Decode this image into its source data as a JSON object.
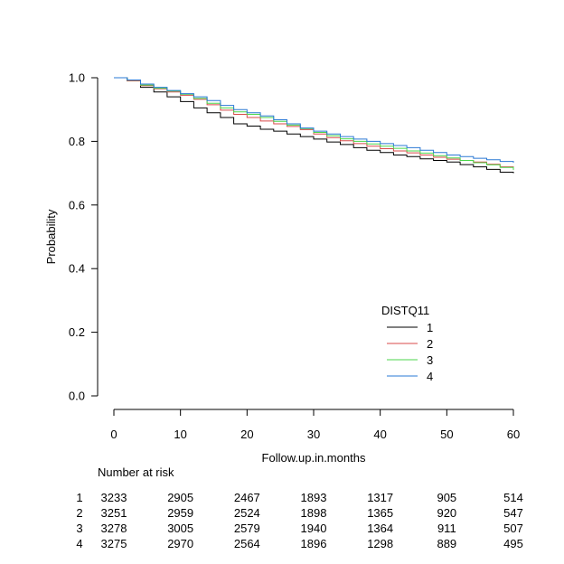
{
  "chart_data": {
    "type": "line",
    "xlabel": "Follow.up.in.months",
    "ylabel": "Probability",
    "xlim": [
      0,
      60
    ],
    "ylim": [
      0.0,
      1.0
    ],
    "x_ticks": [
      "0",
      "10",
      "20",
      "30",
      "40",
      "50",
      "60"
    ],
    "y_ticks": [
      "0.0",
      "0.2",
      "0.4",
      "0.6",
      "0.8",
      "1.0"
    ],
    "grid": false,
    "legend": {
      "title": "DISTQ11",
      "placement": "bottom-right"
    },
    "series": [
      {
        "name": "1",
        "color": "#000000",
        "x": [
          0,
          2,
          4,
          6,
          8,
          10,
          12,
          14,
          16,
          18,
          20,
          22,
          24,
          26,
          28,
          30,
          32,
          34,
          36,
          38,
          40,
          42,
          44,
          46,
          48,
          50,
          52,
          54,
          56,
          58,
          60
        ],
        "y": [
          1.0,
          0.99,
          0.97,
          0.955,
          0.94,
          0.925,
          0.905,
          0.89,
          0.875,
          0.855,
          0.848,
          0.838,
          0.832,
          0.823,
          0.815,
          0.807,
          0.798,
          0.79,
          0.78,
          0.772,
          0.765,
          0.757,
          0.752,
          0.745,
          0.74,
          0.735,
          0.727,
          0.72,
          0.712,
          0.703,
          0.7
        ]
      },
      {
        "name": "2",
        "color": "#d84a4a",
        "x": [
          0,
          2,
          4,
          6,
          8,
          10,
          12,
          14,
          16,
          18,
          20,
          22,
          24,
          26,
          28,
          30,
          32,
          34,
          36,
          38,
          40,
          42,
          44,
          46,
          48,
          50,
          52,
          54,
          56,
          58,
          60
        ],
        "y": [
          1.0,
          0.99,
          0.975,
          0.965,
          0.955,
          0.945,
          0.932,
          0.915,
          0.898,
          0.885,
          0.875,
          0.864,
          0.855,
          0.847,
          0.837,
          0.823,
          0.812,
          0.802,
          0.793,
          0.785,
          0.777,
          0.77,
          0.764,
          0.757,
          0.75,
          0.744,
          0.74,
          0.735,
          0.728,
          0.72,
          0.715
        ]
      },
      {
        "name": "3",
        "color": "#4bd64b",
        "x": [
          0,
          2,
          4,
          6,
          8,
          10,
          12,
          14,
          16,
          18,
          20,
          22,
          24,
          26,
          28,
          30,
          32,
          34,
          36,
          38,
          40,
          42,
          44,
          46,
          48,
          50,
          52,
          54,
          56,
          58,
          60
        ],
        "y": [
          1.0,
          0.992,
          0.977,
          0.967,
          0.958,
          0.948,
          0.935,
          0.92,
          0.905,
          0.893,
          0.885,
          0.875,
          0.863,
          0.851,
          0.84,
          0.828,
          0.818,
          0.808,
          0.8,
          0.792,
          0.785,
          0.778,
          0.77,
          0.763,
          0.755,
          0.748,
          0.74,
          0.733,
          0.726,
          0.718,
          0.71
        ]
      },
      {
        "name": "4",
        "color": "#2a78d4",
        "x": [
          0,
          2,
          4,
          6,
          8,
          10,
          12,
          14,
          16,
          18,
          20,
          22,
          24,
          26,
          28,
          30,
          32,
          34,
          36,
          38,
          40,
          42,
          44,
          46,
          48,
          50,
          52,
          54,
          56,
          58,
          60
        ],
        "y": [
          1.0,
          0.993,
          0.98,
          0.97,
          0.96,
          0.95,
          0.94,
          0.928,
          0.913,
          0.9,
          0.89,
          0.88,
          0.868,
          0.855,
          0.842,
          0.832,
          0.823,
          0.815,
          0.807,
          0.8,
          0.793,
          0.787,
          0.78,
          0.772,
          0.765,
          0.757,
          0.752,
          0.747,
          0.742,
          0.737,
          0.733
        ]
      }
    ],
    "number_at_risk": {
      "title": "Number at risk",
      "times": [
        0,
        10,
        20,
        30,
        40,
        50,
        60
      ],
      "rows": [
        {
          "label": "1",
          "values": [
            "3233",
            "2905",
            "2467",
            "1893",
            "1317",
            "905",
            "514"
          ]
        },
        {
          "label": "2",
          "values": [
            "3251",
            "2959",
            "2524",
            "1898",
            "1365",
            "920",
            "547"
          ]
        },
        {
          "label": "3",
          "values": [
            "3278",
            "3005",
            "2579",
            "1940",
            "1364",
            "911",
            "507"
          ]
        },
        {
          "label": "4",
          "values": [
            "3275",
            "2970",
            "2564",
            "1896",
            "1298",
            "889",
            "495"
          ]
        }
      ]
    }
  }
}
